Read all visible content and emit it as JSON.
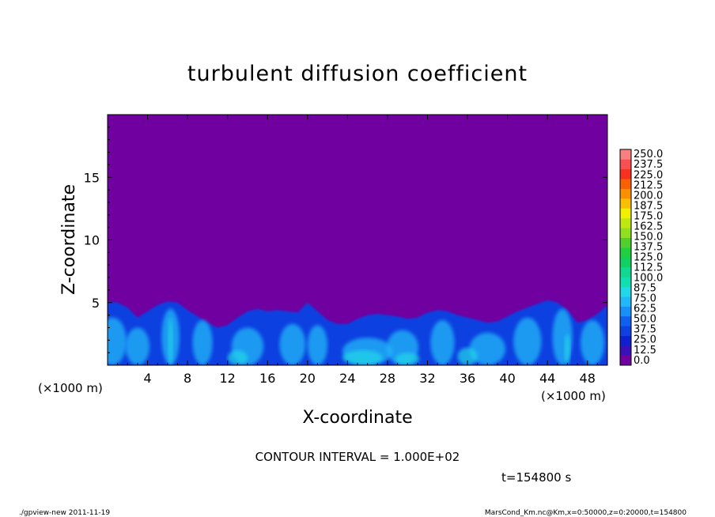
{
  "chart_data": {
    "type": "heatmap",
    "title": "turbulent diffusion coefficient",
    "xlabel": "X-coordinate",
    "ylabel": "Z-coordinate",
    "x_unit_left": "(×1000 m)",
    "x_unit_right": "(×1000 m)",
    "xlim": [
      0,
      50
    ],
    "ylim": [
      0,
      20
    ],
    "x_ticks": [
      4,
      8,
      12,
      16,
      20,
      24,
      28,
      32,
      36,
      40,
      44,
      48
    ],
    "y_ticks": [
      5,
      10,
      15
    ],
    "colorbar": {
      "levels": [
        "0.0",
        "12.5",
        "25.0",
        "37.5",
        "50.0",
        "62.5",
        "75.0",
        "87.5",
        "100.0",
        "112.5",
        "125.0",
        "137.5",
        "150.0",
        "162.5",
        "175.0",
        "187.5",
        "200.0",
        "212.5",
        "225.0",
        "237.5",
        "250.0"
      ],
      "colors": [
        "#7000a0",
        "#3a10b8",
        "#1020d0",
        "#1040e0",
        "#1060f0",
        "#1890f8",
        "#20b8f8",
        "#20d8e8",
        "#10e0b0",
        "#10d890",
        "#10d060",
        "#20d040",
        "#50d030",
        "#90e020",
        "#c0e810",
        "#f0f000",
        "#f8c000",
        "#f89000",
        "#f86000",
        "#f83020",
        "#f85050",
        "#f88080"
      ],
      "contour_interval": "CONTOUR INTERVAL = 1.000E+02"
    },
    "field_description_colors": {
      "background": "#7000a0",
      "low_turbulence": "#1040e0",
      "mid_turbulence": "#20b8f8",
      "high_turbulence": "#20d8e8"
    }
  },
  "time_label": "t=154800 s",
  "footer_left": "./gpview-new   2011-11-19",
  "footer_right": "MarsCond_Km.nc@Km,x=0:50000,z=0:20000,t=154800"
}
